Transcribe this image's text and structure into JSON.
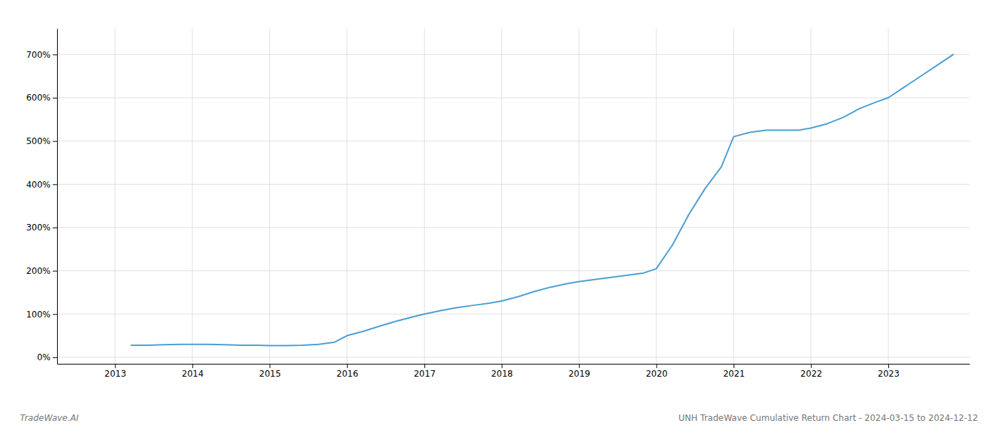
{
  "chart_data": {
    "type": "line",
    "annotations": [
      "TradeWave.AI",
      "UNH TradeWave Cumulative Return Chart - 2024-03-15 to 2024-12-12"
    ],
    "x": [
      2013.21,
      2013.42,
      2013.63,
      2013.84,
      2014.0,
      2014.21,
      2014.42,
      2014.63,
      2014.84,
      2015.0,
      2015.21,
      2015.42,
      2015.63,
      2015.84,
      2016.0,
      2016.21,
      2016.42,
      2016.63,
      2016.84,
      2017.0,
      2017.21,
      2017.42,
      2017.63,
      2017.84,
      2018.0,
      2018.21,
      2018.42,
      2018.63,
      2018.84,
      2019.0,
      2019.21,
      2019.42,
      2019.63,
      2019.84,
      2020.0,
      2020.21,
      2020.42,
      2020.63,
      2020.84,
      2021.0,
      2021.21,
      2021.42,
      2021.63,
      2021.84,
      2022.0,
      2022.21,
      2022.42,
      2022.63,
      2022.84,
      2023.0,
      2023.21,
      2023.42,
      2023.63,
      2023.84
    ],
    "values": [
      28,
      28,
      29,
      30,
      30,
      30,
      29,
      28,
      28,
      27,
      27,
      28,
      30,
      35,
      50,
      60,
      72,
      83,
      93,
      100,
      108,
      115,
      120,
      125,
      130,
      140,
      152,
      162,
      170,
      175,
      180,
      185,
      190,
      195,
      205,
      260,
      330,
      390,
      440,
      510,
      520,
      525,
      525,
      525,
      530,
      540,
      555,
      575,
      590,
      600,
      625,
      650,
      675,
      700
    ],
    "color": "#4a9fd4",
    "xlim": [
      2012.25,
      2024.05
    ],
    "xticks": [
      2013,
      2014,
      2015,
      2016,
      2017,
      2018,
      2019,
      2020,
      2021,
      2022,
      2023
    ],
    "ylim": [
      -15,
      760
    ],
    "yticks": [
      {
        "value": 0,
        "label": "0%"
      },
      {
        "value": 100,
        "label": "100%"
      },
      {
        "value": 200,
        "label": "200%"
      },
      {
        "value": 300,
        "label": "300%"
      },
      {
        "value": 400,
        "label": "400%"
      },
      {
        "value": 500,
        "label": "500%"
      },
      {
        "value": 600,
        "label": "600%"
      },
      {
        "value": 700,
        "label": "700%"
      }
    ],
    "grid": true
  }
}
